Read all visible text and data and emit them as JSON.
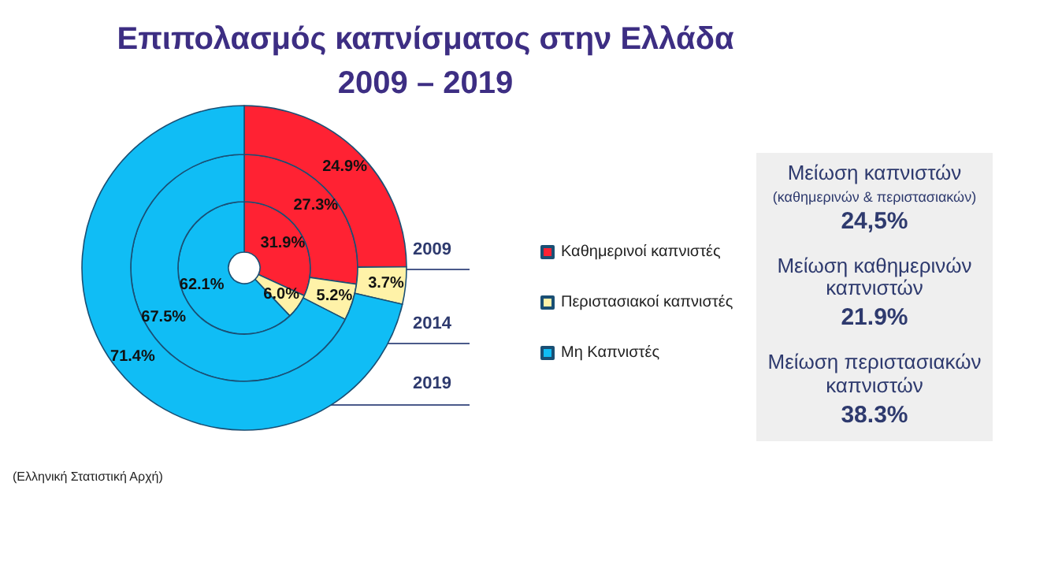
{
  "chart_data": {
    "type": "donut",
    "title": "Επιπολασμός καπνίσματος στην Ελλάδα",
    "subtitle": "2009 – 2019",
    "categories": [
      "Καθημερινοί καπνιστές",
      "Περιστασιακοί καπνιστές",
      "Μη Καπνιστές"
    ],
    "colors": [
      "#ff2233",
      "#fff2a8",
      "#10bdf5"
    ],
    "series": [
      {
        "name": "2009",
        "values": [
          31.9,
          6.0,
          62.1
        ],
        "value_labels": [
          "31.9%",
          "6.0%",
          "62.1%"
        ]
      },
      {
        "name": "2014",
        "values": [
          27.3,
          5.2,
          67.5
        ],
        "value_labels": [
          "27.3%",
          "5.2%",
          "67.5%"
        ]
      },
      {
        "name": "2019",
        "values": [
          24.9,
          3.7,
          71.4
        ],
        "value_labels": [
          "24.9%",
          "3.7%",
          "71.4%"
        ]
      }
    ],
    "legend": "right",
    "annotations": [
      "Μείωση καπνιστών",
      "(καθημερινών & περιστασιακών)",
      "24,5%",
      "Μείωση καθημερινών καπνιστών",
      "21.9%",
      "Μείωση περιστασιακών καπνιστών",
      "38.3%",
      "(Ελληνική Στατιστική Αρχή)"
    ]
  }
}
